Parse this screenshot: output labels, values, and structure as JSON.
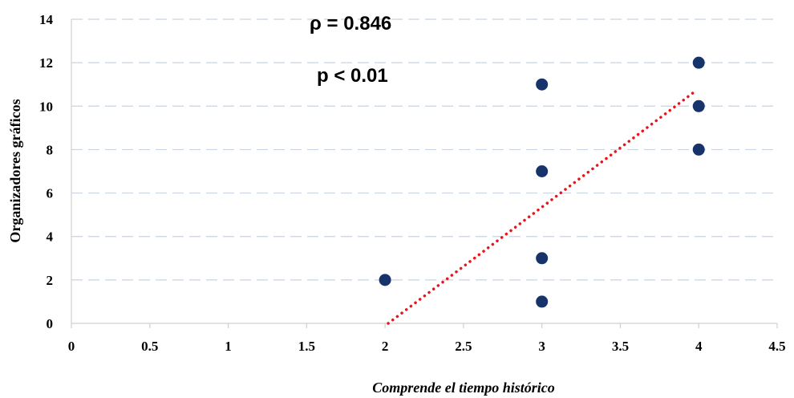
{
  "chart_data": {
    "type": "scatter",
    "title": "",
    "xlabel": "Comprende el tiempo histórico",
    "ylabel": "Organizadores gráficos",
    "xlim": [
      0,
      4.5
    ],
    "ylim": [
      0,
      14
    ],
    "x_ticks": [
      "0",
      "0.5",
      "1",
      "1.5",
      "2",
      "2.5",
      "3",
      "3.5",
      "4",
      "4.5"
    ],
    "y_ticks": [
      "0",
      "2",
      "4",
      "6",
      "8",
      "10",
      "12",
      "14"
    ],
    "grid": "horizontal dashed",
    "point_color": "#17336b",
    "trendline_color": "#e8141b",
    "series": [
      {
        "x": [
          2,
          3,
          3,
          3,
          3,
          4,
          4,
          4
        ],
        "y": [
          2,
          1,
          3,
          7,
          11,
          8,
          10,
          12
        ]
      }
    ],
    "trendline": {
      "x": [
        2.02,
        3.98
      ],
      "y": [
        0,
        10.7
      ]
    },
    "annotations": {
      "rho": "ρ = 0.846",
      "p": "p < 0.01"
    }
  }
}
